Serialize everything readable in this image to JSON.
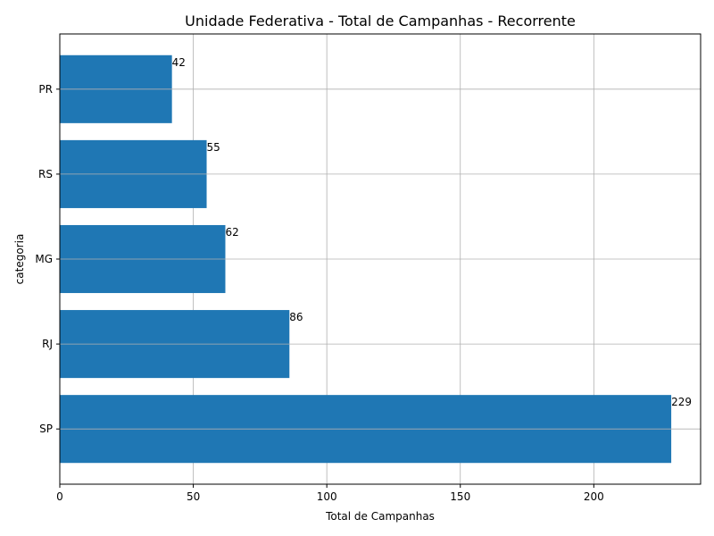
{
  "chart_data": {
    "type": "bar",
    "orientation": "horizontal",
    "title": "Unidade Federativa - Total de Campanhas - Recorrente",
    "xlabel": "Total de Campanhas",
    "ylabel": "categoria",
    "categories": [
      "SP",
      "RJ",
      "MG",
      "RS",
      "PR"
    ],
    "values": [
      229,
      86,
      62,
      55,
      42
    ],
    "xlim": [
      0,
      240
    ],
    "xticks": [
      0,
      50,
      100,
      150,
      200
    ],
    "grid": true,
    "bar_color": "#1f77b4"
  }
}
